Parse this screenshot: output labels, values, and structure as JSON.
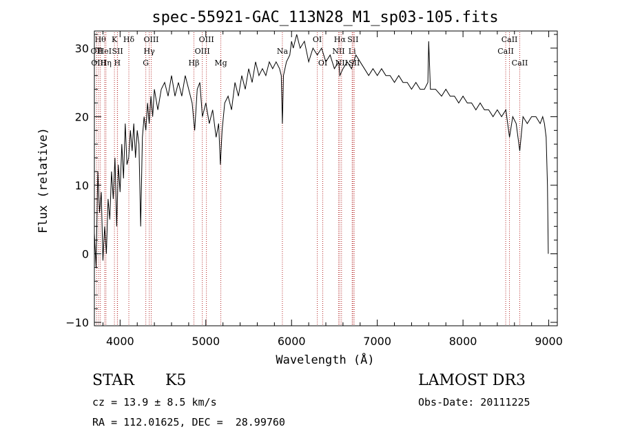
{
  "chart_data": {
    "type": "line",
    "title": "spec-55921-GAC_113N28_M1_sp03-105.fits",
    "xlabel": "Wavelength (Å)",
    "ylabel": "Flux (relative)",
    "xlim": [
      3700,
      9100
    ],
    "ylim": [
      -10.5,
      32.5
    ],
    "x_ticks": [
      4000,
      5000,
      6000,
      7000,
      8000,
      9000
    ],
    "x_tick_labels": [
      "4000",
      "5000",
      "6000",
      "7000",
      "8000",
      "9000"
    ],
    "y_ticks": [
      -10,
      0,
      10,
      20,
      30
    ],
    "y_tick_labels": [
      "−10",
      "0",
      "10",
      "20",
      "30"
    ],
    "series": [
      {
        "name": "spectrum",
        "points": [
          [
            3700,
            3
          ],
          [
            3720,
            -2
          ],
          [
            3740,
            12
          ],
          [
            3760,
            6
          ],
          [
            3780,
            9
          ],
          [
            3800,
            -1
          ],
          [
            3820,
            4
          ],
          [
            3840,
            0
          ],
          [
            3860,
            8
          ],
          [
            3880,
            5
          ],
          [
            3900,
            12
          ],
          [
            3920,
            8
          ],
          [
            3940,
            14
          ],
          [
            3960,
            4
          ],
          [
            3980,
            13
          ],
          [
            4000,
            9
          ],
          [
            4020,
            16
          ],
          [
            4040,
            11
          ],
          [
            4060,
            19
          ],
          [
            4080,
            13
          ],
          [
            4100,
            14
          ],
          [
            4120,
            18
          ],
          [
            4140,
            15
          ],
          [
            4160,
            19
          ],
          [
            4180,
            14
          ],
          [
            4200,
            18
          ],
          [
            4220,
            16
          ],
          [
            4240,
            4
          ],
          [
            4260,
            17
          ],
          [
            4280,
            20
          ],
          [
            4300,
            18
          ],
          [
            4320,
            22
          ],
          [
            4340,
            19
          ],
          [
            4360,
            23
          ],
          [
            4380,
            20
          ],
          [
            4400,
            24
          ],
          [
            4440,
            21
          ],
          [
            4480,
            24
          ],
          [
            4520,
            25
          ],
          [
            4560,
            23
          ],
          [
            4600,
            26
          ],
          [
            4640,
            23
          ],
          [
            4680,
            25
          ],
          [
            4720,
            23
          ],
          [
            4760,
            26
          ],
          [
            4800,
            24
          ],
          [
            4840,
            22
          ],
          [
            4870,
            18
          ],
          [
            4900,
            24
          ],
          [
            4930,
            25
          ],
          [
            4960,
            20
          ],
          [
            5000,
            22
          ],
          [
            5040,
            19
          ],
          [
            5080,
            21
          ],
          [
            5120,
            17
          ],
          [
            5150,
            19
          ],
          [
            5170,
            13
          ],
          [
            5190,
            18
          ],
          [
            5220,
            22
          ],
          [
            5260,
            23
          ],
          [
            5300,
            21
          ],
          [
            5340,
            25
          ],
          [
            5380,
            23
          ],
          [
            5420,
            26
          ],
          [
            5460,
            24
          ],
          [
            5500,
            27
          ],
          [
            5540,
            25
          ],
          [
            5580,
            28
          ],
          [
            5620,
            26
          ],
          [
            5660,
            27
          ],
          [
            5700,
            26
          ],
          [
            5740,
            28
          ],
          [
            5780,
            27
          ],
          [
            5820,
            28
          ],
          [
            5860,
            27
          ],
          [
            5880,
            26
          ],
          [
            5893,
            19
          ],
          [
            5906,
            26
          ],
          [
            5940,
            28
          ],
          [
            5980,
            29
          ],
          [
            6000,
            31
          ],
          [
            6020,
            30
          ],
          [
            6060,
            32
          ],
          [
            6100,
            30
          ],
          [
            6150,
            31
          ],
          [
            6200,
            28
          ],
          [
            6250,
            30
          ],
          [
            6300,
            29
          ],
          [
            6350,
            30
          ],
          [
            6400,
            28
          ],
          [
            6450,
            29
          ],
          [
            6500,
            27
          ],
          [
            6550,
            28
          ],
          [
            6563,
            26
          ],
          [
            6600,
            27
          ],
          [
            6650,
            28
          ],
          [
            6700,
            27
          ],
          [
            6750,
            29
          ],
          [
            6800,
            28
          ],
          [
            6850,
            27
          ],
          [
            6900,
            26
          ],
          [
            6950,
            27
          ],
          [
            7000,
            26
          ],
          [
            7050,
            27
          ],
          [
            7100,
            26
          ],
          [
            7150,
            26
          ],
          [
            7200,
            25
          ],
          [
            7250,
            26
          ],
          [
            7300,
            25
          ],
          [
            7350,
            25
          ],
          [
            7400,
            24
          ],
          [
            7450,
            25
          ],
          [
            7500,
            24
          ],
          [
            7550,
            24
          ],
          [
            7590,
            25
          ],
          [
            7600,
            31
          ],
          [
            7620,
            24
          ],
          [
            7680,
            24
          ],
          [
            7750,
            23
          ],
          [
            7800,
            24
          ],
          [
            7850,
            23
          ],
          [
            7900,
            23
          ],
          [
            7950,
            22
          ],
          [
            8000,
            23
          ],
          [
            8050,
            22
          ],
          [
            8100,
            22
          ],
          [
            8150,
            21
          ],
          [
            8200,
            22
          ],
          [
            8250,
            21
          ],
          [
            8300,
            21
          ],
          [
            8350,
            20
          ],
          [
            8400,
            21
          ],
          [
            8450,
            20
          ],
          [
            8500,
            21
          ],
          [
            8542,
            17
          ],
          [
            8580,
            20
          ],
          [
            8620,
            19
          ],
          [
            8662,
            15
          ],
          [
            8700,
            20
          ],
          [
            8750,
            19
          ],
          [
            8800,
            20
          ],
          [
            8850,
            20
          ],
          [
            8900,
            19
          ],
          [
            8930,
            20
          ],
          [
            8950,
            19
          ],
          [
            8970,
            17
          ],
          [
            8985,
            10
          ],
          [
            8995,
            0
          ]
        ]
      }
    ],
    "line_markers": [
      {
        "x": 3770,
        "label": "Hθ",
        "row": 1
      },
      {
        "x": 3727,
        "label": "OII",
        "row": 2
      },
      {
        "x": 3750,
        "label": "OIII",
        "row": 3
      },
      {
        "x": 3820,
        "label": "HeI",
        "row": 2
      },
      {
        "x": 3835,
        "label": "Hη",
        "row": 3
      },
      {
        "x": 3934,
        "label": "K",
        "row": 1
      },
      {
        "x": 3970,
        "label": "SII",
        "row": 2
      },
      {
        "x": 3968,
        "label": "H",
        "row": 3
      },
      {
        "x": 4102,
        "label": "Hδ",
        "row": 1
      },
      {
        "x": 4300,
        "label": "G",
        "row": 3
      },
      {
        "x": 4340,
        "label": "Hγ",
        "row": 2
      },
      {
        "x": 4363,
        "label": "OIII",
        "row": 1
      },
      {
        "x": 4861,
        "label": "Hβ",
        "row": 3
      },
      {
        "x": 4959,
        "label": "OIII",
        "row": 2
      },
      {
        "x": 5007,
        "label": "OIII",
        "row": 1
      },
      {
        "x": 5175,
        "label": "Mg",
        "row": 3
      },
      {
        "x": 5893,
        "label": "Na",
        "row": 2
      },
      {
        "x": 6300,
        "label": "OI",
        "row": 1
      },
      {
        "x": 6364,
        "label": "OI",
        "row": 3
      },
      {
        "x": 6548,
        "label": "NII",
        "row": 2
      },
      {
        "x": 6563,
        "label": "Hα",
        "row": 1
      },
      {
        "x": 6583,
        "label": "NII",
        "row": 3
      },
      {
        "x": 6707,
        "label": "Li",
        "row": 2
      },
      {
        "x": 6716,
        "label": "SII",
        "row": 1
      },
      {
        "x": 6731,
        "label": "SII",
        "row": 3
      },
      {
        "x": 8498,
        "label": "CaII",
        "row": 2
      },
      {
        "x": 8542,
        "label": "CaII",
        "row": 1
      },
      {
        "x": 8662,
        "label": "CaII",
        "row": 3
      }
    ]
  },
  "info": {
    "class_label": "STAR",
    "subclass_label": "K5",
    "survey_label": "LAMOST DR3",
    "redshift_line": "cz = 13.9 ± 8.5 km/s",
    "obs_date_line": "Obs-Date: 20111225",
    "coords_line": "RA = 112.01625, DEC =  28.99760"
  },
  "colors": {
    "spectrum": "#000000",
    "marker_line": "#b22222"
  }
}
